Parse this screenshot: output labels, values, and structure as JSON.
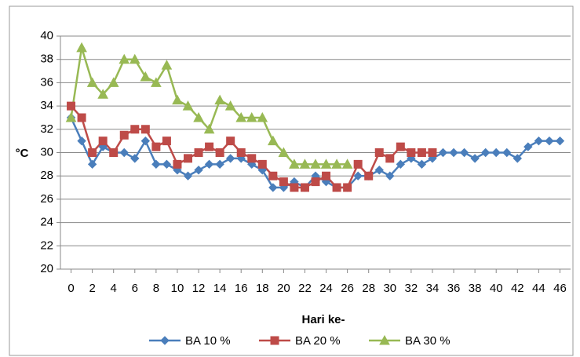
{
  "chart_data": {
    "type": "line",
    "x_label": "Hari ke-",
    "y_label": "°C",
    "x": [
      0,
      1,
      2,
      3,
      4,
      5,
      6,
      7,
      8,
      9,
      10,
      11,
      12,
      13,
      14,
      15,
      16,
      17,
      18,
      19,
      20,
      21,
      22,
      23,
      24,
      25,
      26,
      27,
      28,
      29,
      30,
      31,
      32,
      33,
      34,
      35,
      36,
      37,
      38,
      39,
      40,
      41,
      42,
      43,
      44,
      45,
      46
    ],
    "series": [
      {
        "name": "BA 10 %",
        "color": "#4a7ebb",
        "marker": "diamond",
        "values": [
          33,
          31,
          29,
          30.5,
          30,
          30,
          29.5,
          31,
          29,
          29,
          28.5,
          28,
          28.5,
          29,
          29,
          29.5,
          29.5,
          29,
          28.5,
          27,
          27,
          27.5,
          27,
          28,
          27.5,
          27,
          27,
          28,
          28,
          28.5,
          28,
          29,
          29.5,
          29,
          29.5,
          30,
          30,
          30,
          29.5,
          30,
          30,
          30,
          29.5,
          30.5,
          31,
          31,
          31
        ]
      },
      {
        "name": "BA 20 %",
        "color": "#be4b48",
        "marker": "square",
        "values": [
          34,
          33,
          30,
          31,
          30,
          31.5,
          32,
          32,
          30.5,
          31,
          29,
          29.5,
          30,
          30.5,
          30,
          31,
          30,
          29.5,
          29,
          28,
          27.5,
          27,
          27,
          27.5,
          28,
          27,
          27,
          29,
          28,
          30,
          29.5,
          30.5,
          30,
          30,
          30,
          null,
          null,
          null,
          null,
          null,
          null,
          null,
          null,
          null,
          null,
          null,
          null
        ]
      },
      {
        "name": "BA 30 %",
        "color": "#98b954",
        "marker": "triangle",
        "values": [
          33,
          39,
          36,
          35,
          36,
          38,
          38,
          36.5,
          36,
          37.5,
          34.5,
          34,
          33,
          32,
          34.5,
          34,
          33,
          33,
          33,
          31,
          30,
          29,
          29,
          29,
          29,
          29,
          29,
          null,
          null,
          null,
          null,
          null,
          null,
          null,
          null,
          null,
          null,
          null,
          null,
          null,
          null,
          null,
          null,
          null,
          null,
          null,
          null
        ]
      }
    ],
    "xlim": [
      -1,
      47
    ],
    "xticks": [
      0,
      2,
      4,
      6,
      8,
      10,
      12,
      14,
      16,
      18,
      20,
      22,
      24,
      26,
      28,
      30,
      32,
      34,
      36,
      38,
      40,
      42,
      44,
      46
    ],
    "ylim": [
      20,
      40
    ],
    "yticks": [
      20,
      22,
      24,
      26,
      28,
      30,
      32,
      34,
      36,
      38,
      40
    ],
    "grid": true
  }
}
